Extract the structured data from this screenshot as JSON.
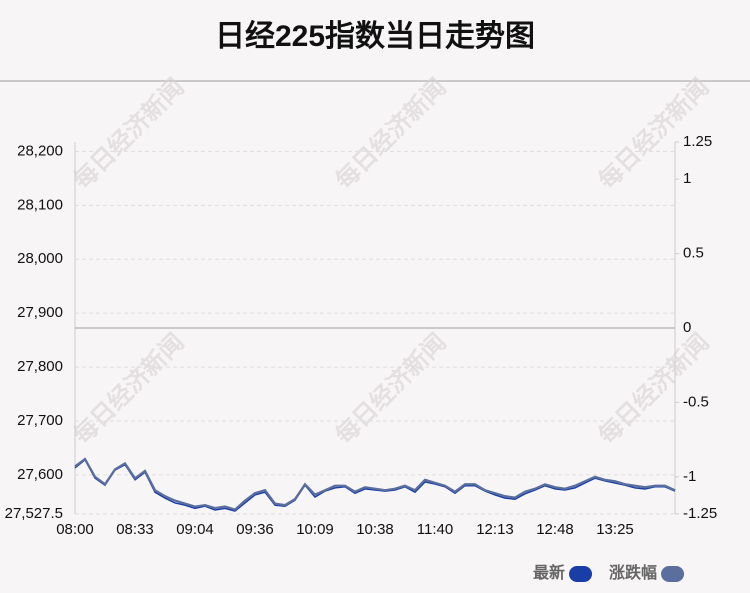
{
  "chart_data": {
    "type": "line",
    "title": "日经225指数当日走势图",
    "watermark": "每日经济新闻",
    "categories": [
      "08:00",
      null,
      null,
      null,
      null,
      null,
      "08:33",
      null,
      null,
      null,
      null,
      null,
      "09:04",
      null,
      null,
      null,
      null,
      null,
      "09:36",
      null,
      null,
      null,
      null,
      null,
      "10:09",
      null,
      null,
      null,
      null,
      null,
      "10:38",
      null,
      null,
      null,
      null,
      null,
      "11:40",
      null,
      null,
      null,
      null,
      null,
      "12:13",
      null,
      null,
      null,
      null,
      null,
      "12:48",
      null,
      null,
      null,
      null,
      null,
      "13:25",
      null,
      null,
      null,
      null,
      null,
      null
    ],
    "series": [
      {
        "name": "最新",
        "color": "#1a3ea8",
        "values": [
          27613,
          27628,
          27594,
          27581,
          27609,
          27619,
          27591,
          27605,
          27568,
          27557,
          27548,
          27544,
          27538,
          27542,
          27535,
          27538,
          27533,
          27548,
          27563,
          27568,
          27544,
          27542,
          27553,
          27581,
          27559,
          27570,
          27576,
          27578,
          27566,
          27574,
          27572,
          27570,
          27572,
          27578,
          27568,
          27587,
          27583,
          27578,
          27566,
          27580,
          27580,
          27570,
          27563,
          27557,
          27555,
          27565,
          27572,
          27580,
          27574,
          27572,
          27576,
          27585,
          27594,
          27589,
          27585,
          27581,
          27576,
          27574,
          27578,
          27578,
          27570
        ]
      },
      {
        "name": "涨跌幅",
        "color": "#5b6f9e",
        "axis": "y2",
        "values": [
          -0.93,
          -0.88,
          -1.0,
          -1.05,
          -0.95,
          -0.91,
          -1.01,
          -0.96,
          -1.09,
          -1.13,
          -1.16,
          -1.18,
          -1.2,
          -1.19,
          -1.21,
          -1.2,
          -1.22,
          -1.16,
          -1.11,
          -1.09,
          -1.18,
          -1.19,
          -1.15,
          -1.05,
          -1.12,
          -1.09,
          -1.06,
          -1.06,
          -1.1,
          -1.07,
          -1.08,
          -1.09,
          -1.08,
          -1.06,
          -1.09,
          -1.02,
          -1.04,
          -1.06,
          -1.1,
          -1.05,
          -1.05,
          -1.09,
          -1.11,
          -1.13,
          -1.14,
          -1.1,
          -1.08,
          -1.05,
          -1.07,
          -1.08,
          -1.06,
          -1.03,
          -1.0,
          -1.02,
          -1.03,
          -1.05,
          -1.06,
          -1.07,
          -1.06,
          -1.06,
          -1.09
        ]
      }
    ],
    "ylim": [
      27527.5,
      28217.5
    ],
    "yticks": [
      {
        "value": 27527.5,
        "label": "27,527.5"
      },
      {
        "value": 27600,
        "label": "27,600"
      },
      {
        "value": 27700,
        "label": "27,700"
      },
      {
        "value": 27800,
        "label": "27,800"
      },
      {
        "value": 27900,
        "label": "27,900"
      },
      {
        "value": 28000,
        "label": "28,000"
      },
      {
        "value": 28100,
        "label": "28,100"
      },
      {
        "value": 28200,
        "label": "28,200"
      }
    ],
    "y2lim": [
      -1.25,
      1.25
    ],
    "y2ticks": [
      -1.25,
      -1,
      -0.5,
      0,
      0.5,
      1,
      1.25
    ],
    "grid": true
  }
}
